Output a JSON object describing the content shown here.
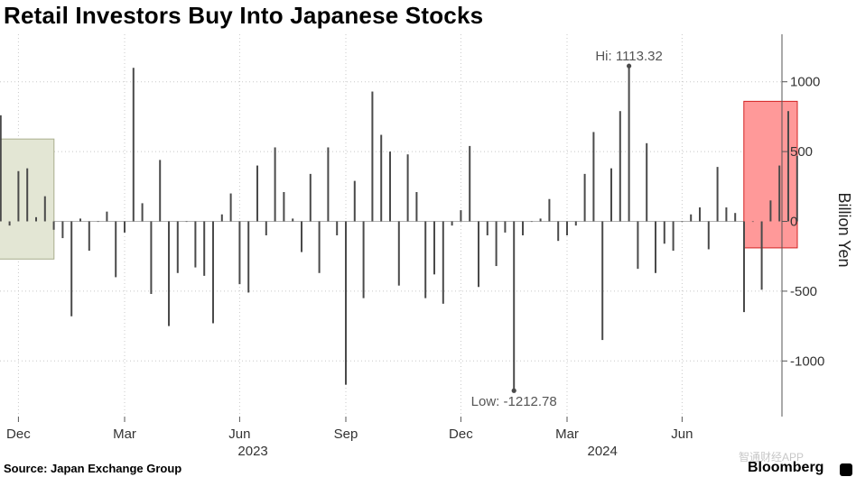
{
  "title": "Retail Investors Buy Into Japanese Stocks",
  "source": "Source: Japan Exchange Group",
  "brand": "Bloomberg",
  "watermark": "智通财经APP",
  "chart_data": {
    "type": "bar",
    "ylabel": "Billion Yen",
    "ylim": [
      -1400,
      1330
    ],
    "yticks": [
      1000,
      500,
      0,
      -500,
      -1000
    ],
    "ytick_labels": [
      "1000",
      "500",
      "0",
      "-500",
      "-1000"
    ],
    "x_month_labels": [
      {
        "label": "Dec",
        "week": 2
      },
      {
        "label": "Mar",
        "week": 14
      },
      {
        "label": "Jun",
        "week": 27
      },
      {
        "label": "Sep",
        "week": 39
      },
      {
        "label": "Dec",
        "week": 52
      },
      {
        "label": "Mar",
        "week": 64
      },
      {
        "label": "Jun",
        "week": 77
      }
    ],
    "x_year_labels": [
      {
        "label": "2023",
        "week": 28.5
      },
      {
        "label": "2024",
        "week": 68
      }
    ],
    "grid": true,
    "values": [
      760,
      -30,
      360,
      380,
      30,
      180,
      -60,
      -120,
      -680,
      20,
      -210,
      0,
      70,
      -400,
      -80,
      1100,
      130,
      -520,
      440,
      -750,
      -370,
      0,
      -330,
      -390,
      -730,
      50,
      200,
      -450,
      -510,
      400,
      -100,
      530,
      210,
      20,
      -220,
      340,
      -370,
      530,
      -100,
      -1170,
      290,
      -550,
      930,
      620,
      500,
      -460,
      480,
      210,
      -550,
      -380,
      -590,
      -30,
      80,
      540,
      -470,
      -100,
      -320,
      -80,
      -1212.78,
      -100,
      0,
      20,
      160,
      -140,
      -100,
      -30,
      340,
      640,
      -850,
      380,
      790,
      1113.32,
      -340,
      560,
      -370,
      -160,
      -210,
      0,
      50,
      100,
      -200,
      390,
      100,
      60,
      -650,
      0,
      -490,
      150,
      400,
      790,
      470
    ],
    "annotations": [
      {
        "text": "Hi: 1113.32",
        "week": 71,
        "value": 1113.32
      },
      {
        "text": "Low: -1212.78",
        "week": 58,
        "value": -1212.78
      }
    ],
    "highlights": [
      {
        "from_week": 0,
        "to_week": 5,
        "ymin": -270,
        "ymax": 590,
        "color": "#e3e6d4"
      },
      {
        "from_week": 85,
        "to_week": 89,
        "ymin": -190,
        "ymax": 860,
        "color": "#ff9999"
      }
    ],
    "colors": {
      "bar": "#4a4a4a",
      "grid": "#c8c8c8",
      "axis": "#555555",
      "highlight_left": "#e3e6d4",
      "highlight_left_border": "#a8ad8d",
      "highlight_right": "#ff9999",
      "highlight_right_border": "#d22222"
    }
  }
}
